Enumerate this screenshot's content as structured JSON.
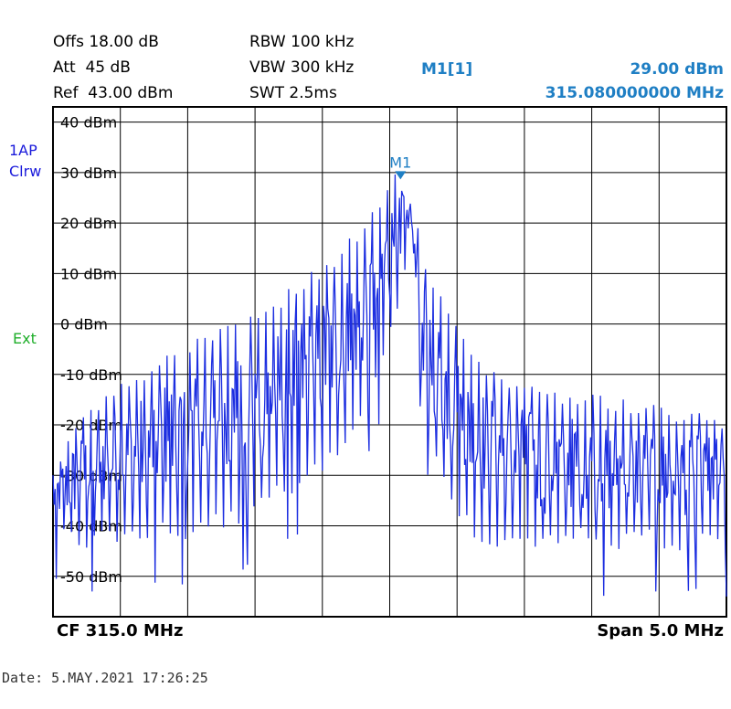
{
  "header": {
    "offs": "Offs 18.00 dB",
    "att": "Att  45 dB",
    "ref": "Ref  43.00 dBm",
    "rbw": "RBW 100 kHz",
    "vbw": "VBW 300 kHz",
    "swt": "SWT 2.5ms",
    "marker_name": "M1[1]",
    "marker_level": "29.00 dBm",
    "marker_freq": "315.080000000 MHz"
  },
  "side": {
    "trace_mode_1": "1AP",
    "trace_mode_2": "Clrw",
    "trigger": "Ext"
  },
  "footer": {
    "center": "CF 315.0 MHz",
    "span": "Span 5.0 MHz"
  },
  "date_stamp": "Date: 5.MAY.2021  17:26:25",
  "colors": {
    "trace": "#1c2ee0",
    "marker": "#1f7fc4",
    "grid": "#000000"
  },
  "chart_data": {
    "type": "line",
    "title": "",
    "xlabel": "",
    "ylabel": "",
    "xlim": [
      312.5,
      317.5
    ],
    "ylim": [
      -58,
      43
    ],
    "y_ticks": [
      40,
      30,
      20,
      10,
      0,
      -10,
      -20,
      -30,
      -40,
      -50
    ],
    "y_tick_labels": [
      "40 dBm",
      "30 dBm",
      "20 dBm",
      "10 dBm",
      "0 dBm",
      "-10 dBm",
      "-20 dBm",
      "-30 dBm",
      "-40 dBm",
      "-50 dBm"
    ],
    "grid": true,
    "marker": {
      "label": "M1",
      "x": 315.08,
      "y": 29.0
    },
    "series": [
      {
        "x": [
          312.5,
          312.6,
          312.7,
          312.8,
          312.9,
          313.0,
          313.1,
          313.2,
          313.3,
          313.4,
          313.5,
          313.6,
          313.7,
          313.8,
          313.9,
          314.0,
          314.1,
          314.2,
          314.3,
          314.4,
          314.5,
          314.6,
          314.7,
          314.8,
          314.9,
          315.0,
          315.05,
          315.08,
          315.12,
          315.18,
          315.25,
          315.35,
          315.45,
          315.55,
          315.65,
          315.75,
          315.85,
          315.95,
          316.05,
          316.15,
          316.3,
          316.45,
          316.6,
          316.75,
          316.9,
          317.05,
          317.2,
          317.35,
          317.5
        ],
        "peaks": [
          -28,
          -22,
          -18,
          -15,
          -14,
          -12,
          -10,
          -8,
          -6,
          -5,
          -4,
          -2,
          -1,
          0,
          1,
          3,
          4,
          6,
          8,
          10,
          12,
          14,
          17,
          20,
          24,
          28,
          30,
          29,
          26,
          24,
          13,
          8,
          2,
          -3,
          -6,
          -8,
          -10,
          -11,
          -12,
          -13,
          -13,
          -14,
          -14,
          -15,
          -16,
          -16,
          -17,
          -18,
          -18
        ],
        "floors": [
          -42,
          -44,
          -45,
          -45,
          -44,
          -43,
          -44,
          -45,
          -42,
          -43,
          -44,
          -42,
          -41,
          -40,
          -41,
          -38,
          -37,
          -35,
          -34,
          -32,
          -30,
          -27,
          -24,
          -20,
          -14,
          -3,
          8,
          22,
          18,
          10,
          -18,
          -30,
          -35,
          -40,
          -43,
          -44,
          -45,
          -44,
          -45,
          -46,
          -45,
          -44,
          -46,
          -45,
          -44,
          -46,
          -45,
          -44,
          -46
        ]
      }
    ]
  }
}
